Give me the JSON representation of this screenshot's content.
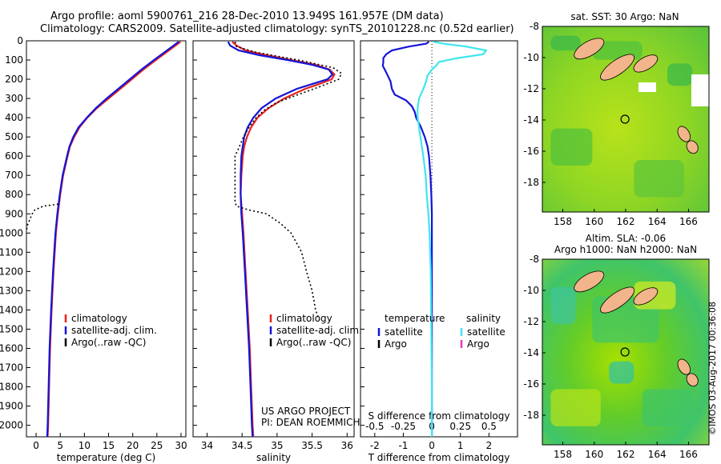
{
  "header": {
    "line1": "Argo profile: aoml 5900761_216 28-Dec-2010 13.949S 161.957E (DM data)",
    "line2": "Climatology: CARS2009. Satellite-adjusted climatology: synTS_20101228.nc (0.52d earlier)"
  },
  "footer": {
    "project": "US ARGO PROJECT",
    "pi": "PI: DEAN ROEMMICH",
    "stamp": "©IMOS 03-Aug-2017 00:36:08"
  },
  "colors": {
    "climatology": "#e8231d",
    "satellite": "#1414d9",
    "argo": "#000000",
    "salinity_sat": "#3ee6ee",
    "salinity_argo": "#e836c8",
    "sea": "#6fcf2a",
    "land": "#f2b48a"
  },
  "depth_axis": {
    "ticks": [
      0,
      100,
      200,
      300,
      400,
      500,
      600,
      700,
      800,
      900,
      1000,
      1100,
      1200,
      1300,
      1400,
      1500,
      1600,
      1700,
      1800,
      1900,
      2000
    ],
    "range": [
      0,
      2060
    ]
  },
  "chart_data": [
    {
      "type": "line",
      "name": "temperature",
      "xlabel": "temperature (deg C)",
      "xlim": [
        -2,
        31
      ],
      "xticks": [
        0,
        5,
        10,
        15,
        20,
        25,
        30
      ],
      "ylim": [
        0,
        2060
      ],
      "legend": [
        "climatology",
        "satellite-adj. clim.",
        "Argo(..raw -QC)"
      ],
      "series": [
        {
          "name": "climatology",
          "color": "#e8231d",
          "dash": "",
          "depth": [
            5,
            50,
            100,
            150,
            200,
            250,
            300,
            350,
            400,
            450,
            500,
            550,
            600,
            700,
            800,
            900,
            1000,
            1200,
            1400,
            1600,
            1800,
            2000,
            2060
          ],
          "values": [
            29.9,
            27.5,
            24.8,
            22.2,
            19.8,
            17.4,
            15.0,
            12.6,
            10.6,
            9.0,
            7.9,
            7.0,
            6.5,
            5.6,
            5.0,
            4.5,
            4.1,
            3.6,
            3.2,
            2.9,
            2.7,
            2.5,
            2.4
          ]
        },
        {
          "name": "satellite-adj. clim.",
          "color": "#1414d9",
          "dash": "",
          "depth": [
            5,
            50,
            100,
            150,
            200,
            250,
            300,
            350,
            400,
            450,
            500,
            550,
            600,
            700,
            800,
            900,
            1000,
            1200,
            1400,
            1600,
            1800,
            2000,
            2060
          ],
          "values": [
            29.5,
            27.1,
            24.4,
            21.8,
            19.4,
            17.0,
            14.6,
            12.4,
            10.5,
            8.8,
            7.7,
            6.9,
            6.4,
            5.5,
            4.9,
            4.4,
            4.0,
            3.5,
            3.1,
            2.8,
            2.6,
            2.4,
            2.3
          ]
        },
        {
          "name": "Argo(..raw -QC)",
          "color": "#000000",
          "dash": "2,3",
          "depth": [
            850,
            860,
            880,
            900,
            930,
            960,
            990
          ],
          "values": [
            4.6,
            1.5,
            -0.3,
            -0.8,
            -1.3,
            -1.8,
            -2.0
          ]
        }
      ]
    },
    {
      "type": "line",
      "name": "salinity",
      "xlabel": "salinity",
      "xlim": [
        33.8,
        36.1
      ],
      "xticks": [
        34,
        34.5,
        35,
        35.5,
        36
      ],
      "ylim": [
        0,
        2060
      ],
      "legend": [
        "climatology",
        "satellite-adj. clim.",
        "Argo(..raw -QC)"
      ],
      "series": [
        {
          "name": "climatology",
          "color": "#e8231d",
          "dash": "",
          "depth": [
            5,
            25,
            50,
            75,
            100,
            125,
            150,
            175,
            200,
            225,
            250,
            300,
            350,
            400,
            450,
            500,
            550,
            600,
            700,
            800,
            900,
            1000,
            1200,
            1400,
            1600,
            1800,
            2000,
            2060
          ],
          "values": [
            34.36,
            34.42,
            34.55,
            34.85,
            35.2,
            35.55,
            35.75,
            35.82,
            35.78,
            35.6,
            35.4,
            35.1,
            34.88,
            34.72,
            34.63,
            34.57,
            34.53,
            34.51,
            34.49,
            34.48,
            34.5,
            34.52,
            34.55,
            34.58,
            34.61,
            34.63,
            34.65,
            34.66
          ]
        },
        {
          "name": "satellite-adj. clim.",
          "color": "#1414d9",
          "dash": "",
          "depth": [
            5,
            25,
            50,
            75,
            100,
            125,
            150,
            175,
            200,
            225,
            250,
            300,
            350,
            400,
            450,
            500,
            550,
            600,
            700,
            800,
            900,
            1000,
            1200,
            1400,
            1600,
            1800,
            2000,
            2060
          ],
          "values": [
            34.3,
            34.33,
            34.45,
            34.75,
            35.15,
            35.5,
            35.74,
            35.79,
            35.72,
            35.5,
            35.28,
            34.98,
            34.78,
            34.66,
            34.58,
            34.53,
            34.51,
            34.49,
            34.48,
            34.48,
            34.49,
            34.51,
            34.54,
            34.57,
            34.6,
            34.62,
            34.64,
            34.65
          ]
        },
        {
          "name": "Argo(..raw -QC)",
          "color": "#000000",
          "dash": "2,3",
          "depth": [
            5,
            30,
            60,
            100,
            140,
            170,
            200,
            240,
            280,
            320,
            360,
            400,
            450,
            500,
            560,
            600,
            640,
            700,
            760,
            800,
            840,
            860,
            880,
            900,
            950,
            1000,
            1100,
            1200,
            1300,
            1400,
            1450
          ],
          "values": [
            34.4,
            34.42,
            34.7,
            35.3,
            35.8,
            35.92,
            35.88,
            35.6,
            35.3,
            35.0,
            34.82,
            34.7,
            34.6,
            34.52,
            34.45,
            34.4,
            34.4,
            34.4,
            34.4,
            34.4,
            34.4,
            34.42,
            34.6,
            34.85,
            35.05,
            35.2,
            35.35,
            35.42,
            35.5,
            35.55,
            35.6
          ]
        }
      ]
    },
    {
      "type": "line",
      "name": "difference",
      "xlabel": "T difference from climatology",
      "xlabel_top": "S difference from climatology",
      "xlim": [
        -2.5,
        3.0
      ],
      "xticks": [
        -2,
        -1,
        0,
        1,
        2
      ],
      "xticks_s": [
        -0.5,
        -0.25,
        0,
        0.25,
        0.5
      ],
      "ylim": [
        0,
        2060
      ],
      "legend_titles": [
        "temperature",
        "salinity"
      ],
      "legend": [
        "satellite",
        "Argo",
        "satellite",
        "Argo"
      ],
      "series": [
        {
          "name": "temperature satellite",
          "color": "#1414d9",
          "dash": "",
          "depth": [
            5,
            15,
            30,
            50,
            70,
            90,
            110,
            130,
            150,
            180,
            210,
            250,
            280,
            310,
            340,
            370,
            400,
            450,
            500,
            550,
            600,
            700,
            800,
            900,
            1000,
            1200,
            1500,
            1800,
            2000,
            2060
          ],
          "values": [
            -0.1,
            -0.2,
            -0.8,
            -1.4,
            -1.6,
            -1.7,
            -1.7,
            -1.72,
            -1.65,
            -1.55,
            -1.45,
            -1.4,
            -1.3,
            -0.9,
            -0.7,
            -0.6,
            -0.55,
            -0.38,
            -0.25,
            -0.15,
            -0.1,
            -0.05,
            -0.02,
            0.0,
            0.0,
            0.0,
            0.0,
            0.0,
            0.0,
            0.0
          ]
        },
        {
          "name": "salinity satellite",
          "color": "#3ee6ee",
          "dash": "",
          "depth": [
            5,
            15,
            30,
            50,
            70,
            90,
            110,
            130,
            150,
            180,
            210,
            250,
            300,
            350,
            400,
            450,
            500,
            600,
            700,
            800,
            900,
            1000,
            1200,
            1500,
            1800,
            2000,
            2060
          ],
          "values": [
            0.05,
            0.4,
            1.2,
            1.9,
            1.8,
            0.9,
            0.25,
            0.15,
            0.0,
            -0.15,
            -0.2,
            -0.3,
            -0.45,
            -0.5,
            -0.5,
            -0.45,
            -0.4,
            -0.3,
            -0.22,
            -0.18,
            -0.12,
            -0.08,
            -0.04,
            -0.02,
            0.0,
            0.0,
            0.0
          ]
        }
      ]
    }
  ],
  "maps": [
    {
      "title": "sat. SST: 30 Argo: NaN",
      "title2": "",
      "xticks": [
        "158",
        "160",
        "162",
        "164",
        "166"
      ],
      "yticks": [
        "-8",
        "-10",
        "-12",
        "-14",
        "-16",
        "-18"
      ],
      "marker": {
        "lon": 161.957,
        "lat": -13.949
      }
    },
    {
      "title": "Altim. SLA: -0.06",
      "title2": "Argo h1000: NaN h2000: NaN",
      "xticks": [
        "158",
        "160",
        "162",
        "164",
        "166"
      ],
      "yticks": [
        "-8",
        "-10",
        "-12",
        "-14",
        "-16",
        "-18"
      ],
      "marker": {
        "lon": 161.957,
        "lat": -13.949
      }
    }
  ]
}
